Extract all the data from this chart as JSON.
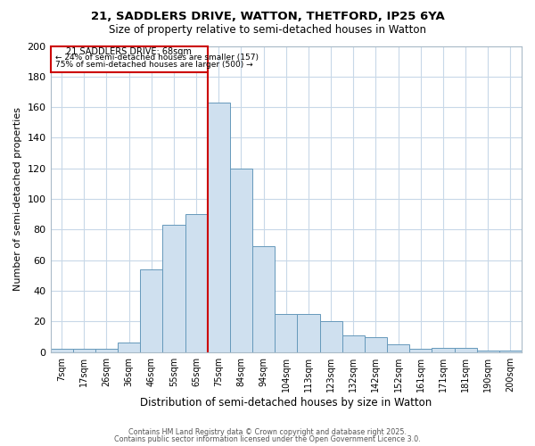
{
  "title1": "21, SADDLERS DRIVE, WATTON, THETFORD, IP25 6YA",
  "title2": "Size of property relative to semi-detached houses in Watton",
  "xlabel": "Distribution of semi-detached houses by size in Watton",
  "ylabel": "Number of semi-detached properties",
  "categories": [
    "7sqm",
    "17sqm",
    "26sqm",
    "36sqm",
    "46sqm",
    "55sqm",
    "65sqm",
    "75sqm",
    "84sqm",
    "94sqm",
    "104sqm",
    "113sqm",
    "123sqm",
    "132sqm",
    "142sqm",
    "152sqm",
    "161sqm",
    "171sqm",
    "181sqm",
    "190sqm",
    "200sqm"
  ],
  "values": [
    2,
    2,
    2,
    6,
    54,
    83,
    90,
    163,
    120,
    69,
    25,
    25,
    20,
    11,
    10,
    5,
    2,
    3,
    3,
    1,
    1
  ],
  "bar_color": "#cfe0ef",
  "bar_edge_color": "#6699bb",
  "vline_color": "#cc0000",
  "vline_x": 6.5,
  "box_color": "#cc0000",
  "property_label": "21 SADDLERS DRIVE: 68sqm",
  "annotation_line1": "← 24% of semi-detached houses are smaller (157)",
  "annotation_line2": "75% of semi-detached houses are larger (500) →",
  "ylim": [
    0,
    200
  ],
  "yticks": [
    0,
    20,
    40,
    60,
    80,
    100,
    120,
    140,
    160,
    180,
    200
  ],
  "footer1": "Contains HM Land Registry data © Crown copyright and database right 2025.",
  "footer2": "Contains public sector information licensed under the Open Government Licence 3.0."
}
